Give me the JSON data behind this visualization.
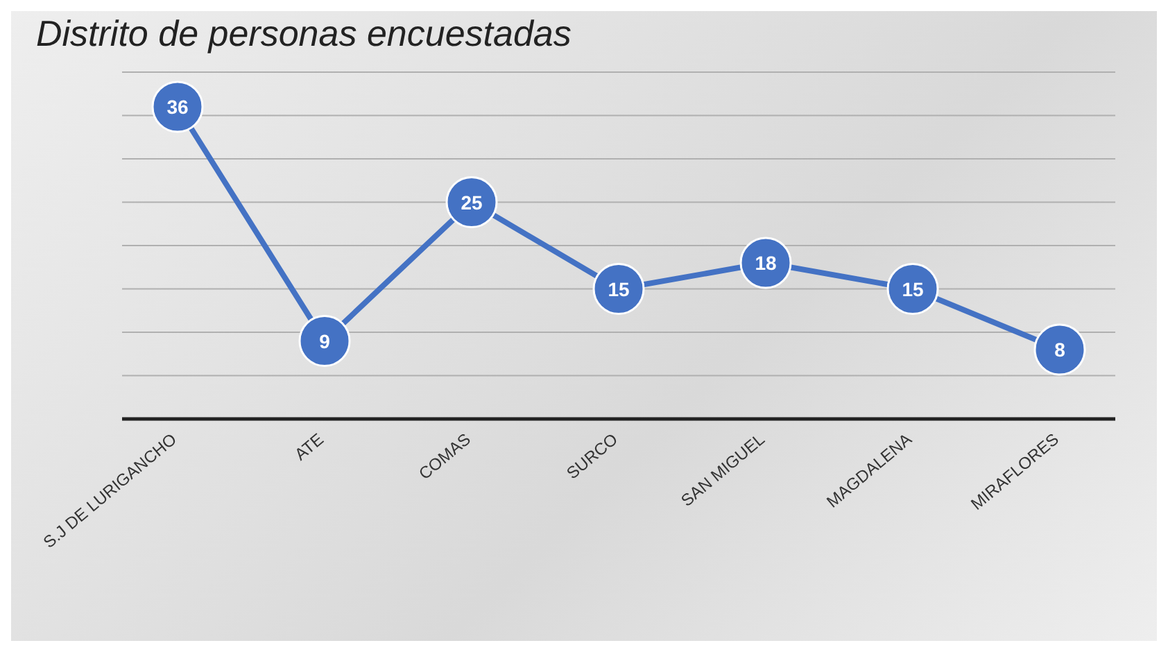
{
  "chart_data": {
    "type": "line",
    "title": "Distrito de personas encuestadas",
    "categories": [
      "S.J DE LURIGANCHO",
      "ATE",
      "COMAS",
      "SURCO",
      "SAN MIGUEL",
      "MAGDALENA",
      "MIRAFLORES"
    ],
    "series": [
      {
        "color": "#4472c4",
        "values": [
          36,
          9,
          25,
          15,
          18,
          15,
          8
        ]
      }
    ],
    "grid": "y",
    "tick_labels": "x",
    "marker": "circle",
    "line_style": "solid",
    "data_labels": true
  }
}
